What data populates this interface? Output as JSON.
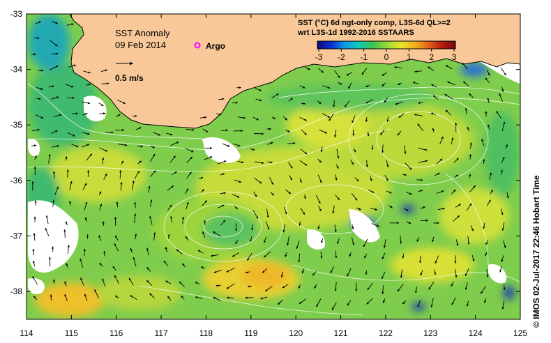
{
  "map": {
    "title": "SST Anomaly",
    "date": "09 Feb 2014",
    "argo_label": "Argo",
    "scale_label": "0.5 m/s",
    "legend_line1": "SST (°C) 6d ngt-only comp, L3S-6d QL>=2",
    "legend_line2": "wrt L3S-1d 1992-2016 SSTAARS",
    "credit": "© IMOS 02-Jul-2017 22:46 Hobart Time"
  },
  "colorbar": {
    "ticks": [
      "-3",
      "-2",
      "-1",
      "0",
      "1",
      "2",
      "3"
    ],
    "min": -3,
    "max": 3,
    "stops": [
      "#0a0a7a",
      "#0a2fd0",
      "#0a9be8",
      "#11c9b8",
      "#3ec34f",
      "#97d93a",
      "#e3e62a",
      "#f2b51c",
      "#e5661a",
      "#b81c10",
      "#6e0c08"
    ]
  },
  "axes": {
    "x_ticks": [
      "114",
      "115",
      "116",
      "117",
      "118",
      "119",
      "120",
      "121",
      "122",
      "123",
      "124",
      "125"
    ],
    "y_ticks": [
      "-33",
      "-34",
      "-35",
      "-36",
      "-37",
      "-38"
    ]
  },
  "colors": {
    "land": "#f8c898",
    "ocean_base": "#7fcd4c",
    "argo": "#ff00ff"
  }
}
